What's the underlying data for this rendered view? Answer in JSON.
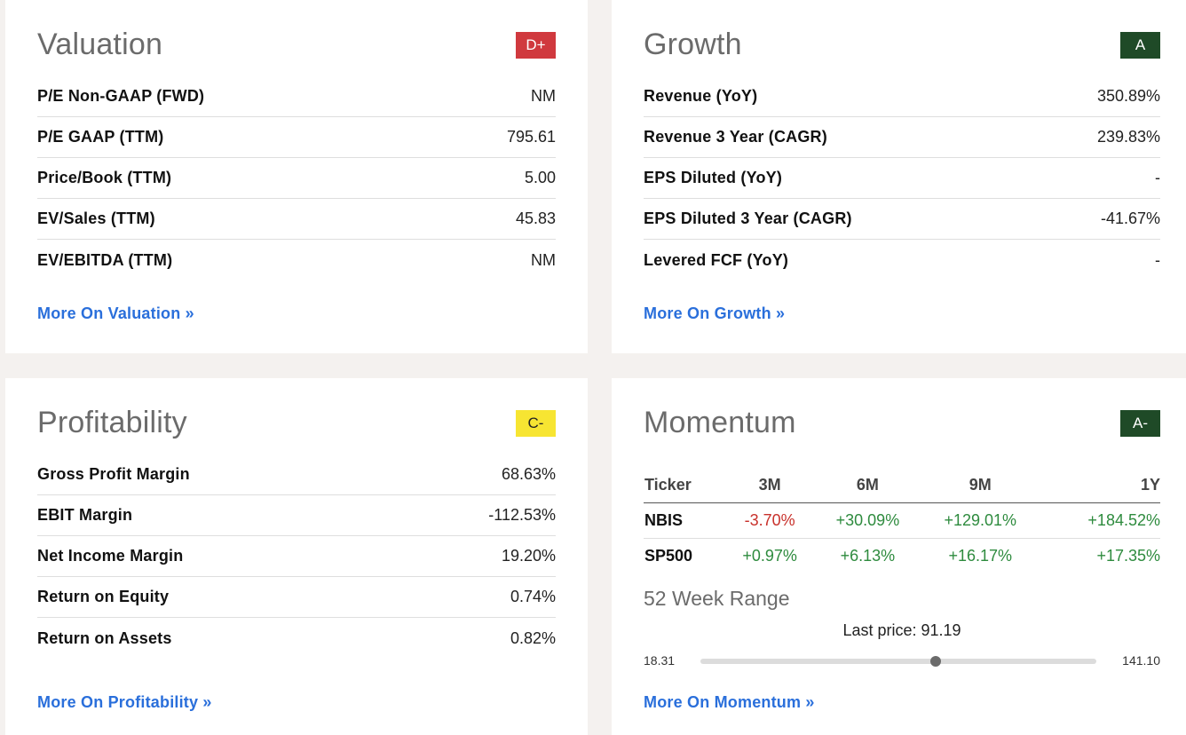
{
  "valuation": {
    "title": "Valuation",
    "grade": "D+",
    "grade_color": "#d0393e",
    "rows": [
      {
        "label": "P/E Non-GAAP (FWD)",
        "value": "NM"
      },
      {
        "label": "P/E GAAP (TTM)",
        "value": "795.61"
      },
      {
        "label": "Price/Book (TTM)",
        "value": "5.00"
      },
      {
        "label": "EV/Sales (TTM)",
        "value": "45.83"
      },
      {
        "label": "EV/EBITDA (TTM)",
        "value": "NM"
      }
    ],
    "more_link": "More On Valuation »"
  },
  "growth": {
    "title": "Growth",
    "grade": "A",
    "grade_color": "#1f4a27",
    "rows": [
      {
        "label": "Revenue (YoY)",
        "value": "350.89%"
      },
      {
        "label": "Revenue 3 Year (CAGR)",
        "value": "239.83%"
      },
      {
        "label": "EPS Diluted (YoY)",
        "value": "-"
      },
      {
        "label": "EPS Diluted 3 Year (CAGR)",
        "value": "-41.67%"
      },
      {
        "label": "Levered FCF (YoY)",
        "value": "-"
      }
    ],
    "more_link": "More On Growth »"
  },
  "profitability": {
    "title": "Profitability",
    "grade": "C-",
    "grade_color": "#f7e532",
    "rows": [
      {
        "label": "Gross Profit Margin",
        "value": "68.63%"
      },
      {
        "label": "EBIT Margin",
        "value": "-112.53%"
      },
      {
        "label": "Net Income Margin",
        "value": "19.20%"
      },
      {
        "label": "Return on Equity",
        "value": "0.74%"
      },
      {
        "label": "Return on Assets",
        "value": "0.82%"
      }
    ],
    "more_link": "More On Profitability »"
  },
  "momentum": {
    "title": "Momentum",
    "grade": "A-",
    "grade_color": "#1f4a27",
    "table": {
      "headers": [
        "Ticker",
        "3M",
        "6M",
        "9M",
        "1Y"
      ],
      "rows": [
        {
          "cells": [
            "NBIS",
            "-3.70%",
            "+30.09%",
            "+129.01%",
            "+184.52%"
          ]
        },
        {
          "cells": [
            "SP500",
            "+0.97%",
            "+6.13%",
            "+16.17%",
            "+17.35%"
          ]
        }
      ]
    },
    "range_title": "52 Week Range",
    "last_price_label": "Last price: 91.19",
    "range_low": "18.31",
    "range_high": "141.10",
    "last_price": 91.19,
    "low_value": 18.31,
    "high_value": 141.1,
    "more_link": "More On Momentum »"
  },
  "colors": {
    "positive": "#2e8b3e",
    "negative": "#c8312b",
    "link": "#2a6fdb"
  }
}
